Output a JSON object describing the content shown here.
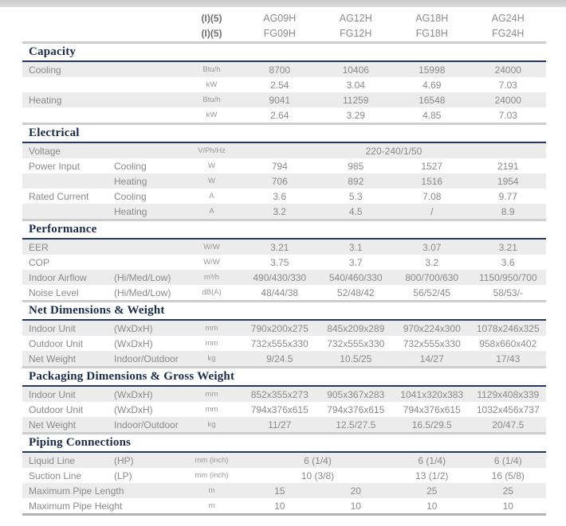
{
  "colors": {
    "section_title_navy": "#1b2b4a",
    "title_underline_navy": "#233a5e",
    "row_shade_gray": "#ececec",
    "body_text_gray": "#8a8a8a",
    "top_bar_gray": "#d2d2d2"
  },
  "header": {
    "rows": [
      {
        "key": "(I)(5)",
        "models": [
          "AG09H",
          "AG12H",
          "AG18H",
          "AG24H"
        ]
      },
      {
        "key": "(I)(5)",
        "models": [
          "FG09H",
          "FG12H",
          "FG18H",
          "FG24H"
        ]
      }
    ]
  },
  "sections": [
    {
      "title": "Capacity",
      "rows": [
        {
          "label": "Cooling",
          "sub": "",
          "unit": "Btu/h",
          "values": [
            "8700",
            "10406",
            "15998",
            "24000"
          ]
        },
        {
          "label": "",
          "sub": "",
          "unit": "kW",
          "values": [
            "2.54",
            "3.04",
            "4.69",
            "7.03"
          ]
        },
        {
          "label": "Heating",
          "sub": "",
          "unit": "Btu/h",
          "values": [
            "9041",
            "11259",
            "16548",
            "24000"
          ]
        },
        {
          "label": "",
          "sub": "",
          "unit": "kW",
          "values": [
            "2.64",
            "3.29",
            "4.85",
            "7.03"
          ]
        }
      ]
    },
    {
      "title": "Electrical",
      "rows": [
        {
          "label": "Voltage",
          "sub": "",
          "unit": "V/Ph/Hz",
          "values": [
            "220-240/1/50"
          ],
          "spans": [
            4
          ]
        },
        {
          "label": "Power Input",
          "sub": "Cooling",
          "unit": "W",
          "values": [
            "794",
            "985",
            "1527",
            "2191"
          ]
        },
        {
          "label": "",
          "sub": "Heating",
          "unit": "W",
          "values": [
            "706",
            "892",
            "1516",
            "1954"
          ]
        },
        {
          "label": "Rated Current",
          "sub": "Cooling",
          "unit": "A",
          "values": [
            "3.6",
            "5.3",
            "7.08",
            "9.77"
          ]
        },
        {
          "label": "",
          "sub": "Heating",
          "unit": "A",
          "values": [
            "3.2",
            "4.5",
            "/",
            "8.9"
          ]
        }
      ]
    },
    {
      "title": "Performance",
      "rows": [
        {
          "label": "EER",
          "sub": "",
          "unit": "W/W",
          "values": [
            "3.21",
            "3.1",
            "3.07",
            "3.21"
          ]
        },
        {
          "label": "COP",
          "sub": "",
          "unit": "W/W",
          "values": [
            "3.75",
            "3.7",
            "3.2",
            "3.6"
          ]
        },
        {
          "label": "Indoor Airflow",
          "sub": "(Hi/Med/Low)",
          "unit": "m³/h",
          "values": [
            "490/430/330",
            "540/460/330",
            "800/700/630",
            "1150/950/700"
          ]
        },
        {
          "label": "Noise Level",
          "sub": "(Hi/Med/Low)",
          "unit": "dB(A)",
          "values": [
            "48/44/38",
            "52/48/42",
            "56/52/45",
            "58/53/-"
          ]
        }
      ]
    },
    {
      "title": "Net Dimensions & Weight",
      "rows": [
        {
          "label": "Indoor Unit",
          "sub": "(WxDxH)",
          "unit": "mm",
          "values": [
            "790x200x275",
            "845x209x289",
            "970x224x300",
            "1078x246x325"
          ]
        },
        {
          "label": "Outdoor Unit",
          "sub": "(WxDxH)",
          "unit": "mm",
          "values": [
            "732x555x330",
            "732x555x330",
            "732x555x330",
            "958x660x402"
          ]
        },
        {
          "label": "Net Weight",
          "sub": "Indoor/Outdoor",
          "unit": "kg",
          "values": [
            "9/24.5",
            "10.5/25",
            "14/27",
            "17/43"
          ]
        }
      ]
    },
    {
      "title": "Packaging Dimensions & Gross Weight",
      "rows": [
        {
          "label": "Indoor Unit",
          "sub": "(WxDxH)",
          "unit": "mm",
          "values": [
            "852x355x273",
            "905x367x283",
            "1041x320x383",
            "1129x408x339"
          ]
        },
        {
          "label": "Outdoor Unit",
          "sub": "(WxDxH)",
          "unit": "mm",
          "values": [
            "794x376x615",
            "794x376x615",
            "794x376x615",
            "1032x456x737"
          ]
        },
        {
          "label": "Net Weight",
          "sub": "Indoor/Outdoor",
          "unit": "kg",
          "values": [
            "11/27",
            "12.5/27.5",
            "16.5/29.5",
            "20/47.5"
          ]
        }
      ]
    },
    {
      "title": "Piping Connections",
      "rows": [
        {
          "label": "Liquid Line",
          "sub": "(HP)",
          "unit": "mm (inch)",
          "values": [
            "6 (1/4)",
            "6 (1/4)",
            "6 (1/4)"
          ],
          "spans": [
            2,
            1,
            1
          ]
        },
        {
          "label": "Suction Line",
          "sub": "(LP)",
          "unit": "mm (inch)",
          "values": [
            "10 (3/8)",
            "13 (1/2)",
            "16 (5/8)"
          ],
          "spans": [
            2,
            1,
            1
          ]
        },
        {
          "label": "Maximum Pipe Length",
          "sub": "",
          "unit": "m",
          "values": [
            "15",
            "20",
            "25",
            "25"
          ]
        },
        {
          "label": "Maximum Pipe Height",
          "sub": "",
          "unit": "m",
          "values": [
            "10",
            "10",
            "10",
            "10"
          ]
        }
      ]
    }
  ]
}
